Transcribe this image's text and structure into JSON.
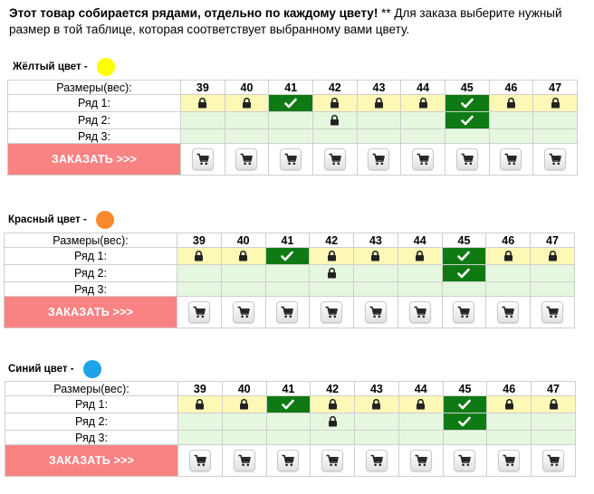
{
  "intro": {
    "bold": "Этот товар собирается рядами, отдельно по каждому цвету!",
    "rest": " ** Для заказа выберите нужный размер в  той таблице, которая соответствует выбранному вами цвету."
  },
  "row_labels": {
    "sizes": "Размеры(вес):",
    "row1": "Ряд 1:",
    "row2": "Ряд 2:",
    "row3": "Ряд 3:"
  },
  "sizes": [
    "39",
    "40",
    "41",
    "42",
    "43",
    "44",
    "45",
    "46",
    "47"
  ],
  "order_label": "ЗАКАЗАТЬ >>>",
  "status_legend": {
    "lock": "lock-icon",
    "check": "check-icon",
    "cart": "cart-icon"
  },
  "sections": [
    {
      "color_label": "Жёлтый цвет -",
      "dot_color": "#ffff00",
      "row1": [
        "lock",
        "lock",
        "check",
        "lock",
        "lock",
        "lock",
        "check",
        "lock",
        "lock"
      ],
      "row2": [
        "",
        "",
        "",
        "lock",
        "",
        "",
        "check",
        "",
        ""
      ],
      "row3": [
        "",
        "",
        "",
        "",
        "",
        "",
        "",
        "",
        ""
      ]
    },
    {
      "color_label": "Красный цвет  -",
      "dot_color": "#f98a2c",
      "row1": [
        "lock",
        "lock",
        "check",
        "lock",
        "lock",
        "lock",
        "check",
        "lock",
        "lock"
      ],
      "row2": [
        "",
        "",
        "",
        "lock",
        "",
        "",
        "check",
        "",
        ""
      ],
      "row3": [
        "",
        "",
        "",
        "",
        "",
        "",
        "",
        "",
        ""
      ]
    },
    {
      "color_label": "Синий цвет -",
      "dot_color": "#1ea2ea",
      "row1": [
        "lock",
        "lock",
        "check",
        "lock",
        "lock",
        "lock",
        "check",
        "lock",
        "lock"
      ],
      "row2": [
        "",
        "",
        "",
        "lock",
        "",
        "",
        "check",
        "",
        ""
      ],
      "row3": [
        "",
        "",
        "",
        "",
        "",
        "",
        "",
        "",
        ""
      ]
    }
  ],
  "colors": {
    "row_yellow": "#fdf8b6",
    "row_green": "#e6f7df",
    "sold_green": "#0f7a14",
    "order_red": "#f98383"
  }
}
